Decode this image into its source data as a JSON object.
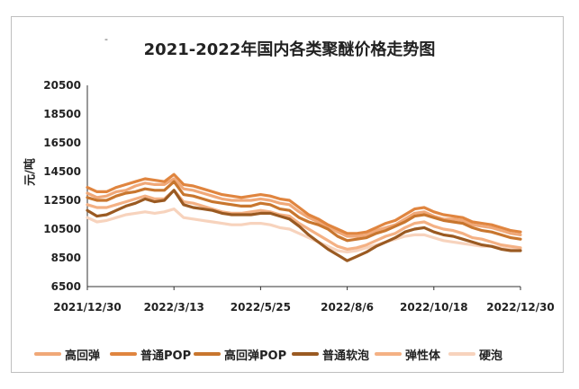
{
  "dash": "-",
  "chart_data": {
    "type": "line",
    "title": "2021-2022年国内各类聚醚价格走势图",
    "ylabel": "元/吨",
    "xlabel": "",
    "ylim": [
      6500,
      20500
    ],
    "yticks": [
      6500,
      8500,
      10500,
      12500,
      14500,
      16500,
      18500,
      20500
    ],
    "x_ticks": [
      "2021/12/30",
      "2022/3/13",
      "2022/5/25",
      "2022/8/6",
      "2022/10/18",
      "2022/12/30"
    ],
    "grid": false,
    "legend": "bottom",
    "x": [
      "2021/12/30",
      "2022/1/7",
      "2022/1/15",
      "2022/1/23",
      "2022/1/31",
      "2022/2/8",
      "2022/2/16",
      "2022/2/24",
      "2022/3/4",
      "2022/3/13",
      "2022/3/21",
      "2022/3/29",
      "2022/4/6",
      "2022/4/14",
      "2022/4/22",
      "2022/4/30",
      "2022/5/8",
      "2022/5/16",
      "2022/5/25",
      "2022/6/2",
      "2022/6/10",
      "2022/6/18",
      "2022/6/26",
      "2022/7/4",
      "2022/7/12",
      "2022/7/20",
      "2022/7/28",
      "2022/8/6",
      "2022/8/14",
      "2022/8/22",
      "2022/8/30",
      "2022/9/7",
      "2022/9/15",
      "2022/9/23",
      "2022/10/1",
      "2022/10/9",
      "2022/10/18",
      "2022/10/26",
      "2022/11/3",
      "2022/11/11",
      "2022/11/19",
      "2022/11/27",
      "2022/12/5",
      "2022/12/13",
      "2022/12/21",
      "2022/12/30"
    ],
    "series": [
      {
        "name": "高回弹",
        "color": "#f0a878",
        "values": [
          13000,
          12700,
          12800,
          13100,
          13200,
          13500,
          13700,
          13600,
          13600,
          14000,
          13300,
          13200,
          13000,
          12800,
          12600,
          12500,
          12500,
          12500,
          12600,
          12500,
          12300,
          12200,
          11700,
          11300,
          11000,
          10700,
          10300,
          10000,
          10000,
          10100,
          10400,
          10600,
          10800,
          11200,
          11600,
          11700,
          11400,
          11200,
          11200,
          11100,
          10800,
          10700,
          10600,
          10400,
          10200,
          10100
        ]
      },
      {
        "name": "普通POP",
        "color": "#e0853f",
        "values": [
          13400,
          13100,
          13100,
          13400,
          13600,
          13800,
          14000,
          13900,
          13800,
          14300,
          13600,
          13500,
          13300,
          13100,
          12900,
          12800,
          12700,
          12800,
          12900,
          12800,
          12600,
          12500,
          12000,
          11500,
          11200,
          10800,
          10500,
          10200,
          10200,
          10300,
          10600,
          10900,
          11100,
          11500,
          11900,
          12000,
          11700,
          11500,
          11400,
          11300,
          11000,
          10900,
          10800,
          10600,
          10400,
          10300
        ]
      },
      {
        "name": "高回弹POP",
        "color": "#c8762e",
        "values": [
          12700,
          12500,
          12500,
          12800,
          13000,
          13100,
          13300,
          13200,
          13200,
          13800,
          12900,
          12800,
          12600,
          12400,
          12300,
          12200,
          12100,
          12100,
          12300,
          12200,
          11900,
          11800,
          11300,
          11000,
          10800,
          10500,
          10000,
          9700,
          9800,
          9900,
          10200,
          10400,
          10700,
          11000,
          11400,
          11500,
          11300,
          11100,
          11000,
          10900,
          10600,
          10400,
          10300,
          10100,
          9900,
          9800
        ]
      },
      {
        "name": "普通软泡",
        "color": "#9a5a22",
        "values": [
          11800,
          11400,
          11500,
          11800,
          12100,
          12300,
          12600,
          12400,
          12500,
          13200,
          12200,
          12000,
          11900,
          11800,
          11600,
          11500,
          11500,
          11500,
          11600,
          11600,
          11400,
          11200,
          10700,
          10100,
          9600,
          9100,
          8700,
          8300,
          8600,
          8900,
          9300,
          9600,
          9900,
          10300,
          10500,
          10600,
          10300,
          10100,
          10000,
          9800,
          9600,
          9400,
          9300,
          9100,
          9000,
          9000
        ]
      },
      {
        "name": "弹性体",
        "color": "#f4b184",
        "values": [
          12200,
          12000,
          12000,
          12200,
          12400,
          12600,
          12800,
          12600,
          12600,
          13200,
          12400,
          12300,
          12100,
          11900,
          11700,
          11600,
          11600,
          11700,
          11800,
          11700,
          11500,
          11400,
          10900,
          10500,
          10100,
          9700,
          9300,
          9100,
          9200,
          9400,
          9700,
          10000,
          10200,
          10600,
          10900,
          11000,
          10700,
          10500,
          10400,
          10200,
          9900,
          9800,
          9600,
          9400,
          9300,
          9200
        ]
      },
      {
        "name": "硬泡",
        "color": "#f7d3bd",
        "values": [
          11300,
          11000,
          11100,
          11300,
          11500,
          11600,
          11700,
          11600,
          11700,
          11900,
          11300,
          11200,
          11100,
          11000,
          10900,
          10800,
          10800,
          10900,
          10900,
          10800,
          10600,
          10500,
          10200,
          9900,
          9600,
          9300,
          9000,
          8900,
          9000,
          9200,
          9400,
          9600,
          9800,
          10000,
          10100,
          10100,
          9900,
          9700,
          9600,
          9500,
          9400,
          9300,
          9300,
          9200,
          9100,
          9100
        ]
      }
    ]
  }
}
